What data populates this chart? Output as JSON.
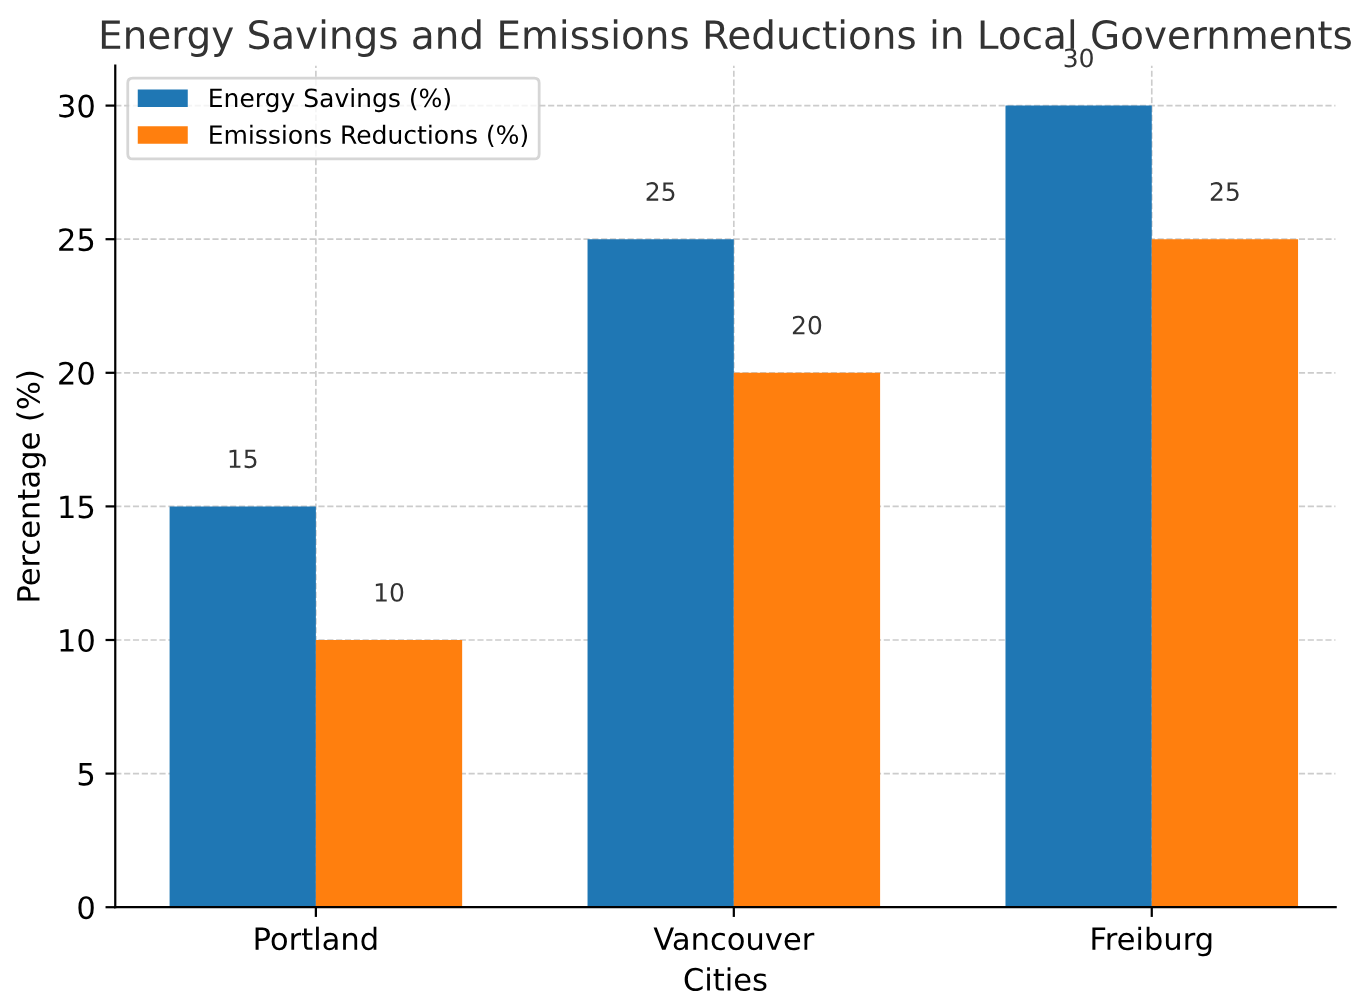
{
  "chart_data": {
    "type": "bar",
    "title": "Energy Savings and Emissions Reductions in Local Governments",
    "xlabel": "Cities",
    "ylabel": "Percentage (%)",
    "categories": [
      "Portland",
      "Vancouver",
      "Freiburg"
    ],
    "series": [
      {
        "name": "Energy Savings (%)",
        "color": "#1f77b4",
        "values": [
          15,
          25,
          30
        ]
      },
      {
        "name": "Emissions Reductions (%)",
        "color": "#ff7f0e",
        "values": [
          10,
          20,
          25
        ]
      }
    ],
    "ylim": [
      0,
      31.5
    ],
    "yticks": [
      0,
      5,
      10,
      15,
      20,
      25,
      30
    ],
    "grid": true,
    "legend": "top left",
    "data_labels": true
  }
}
